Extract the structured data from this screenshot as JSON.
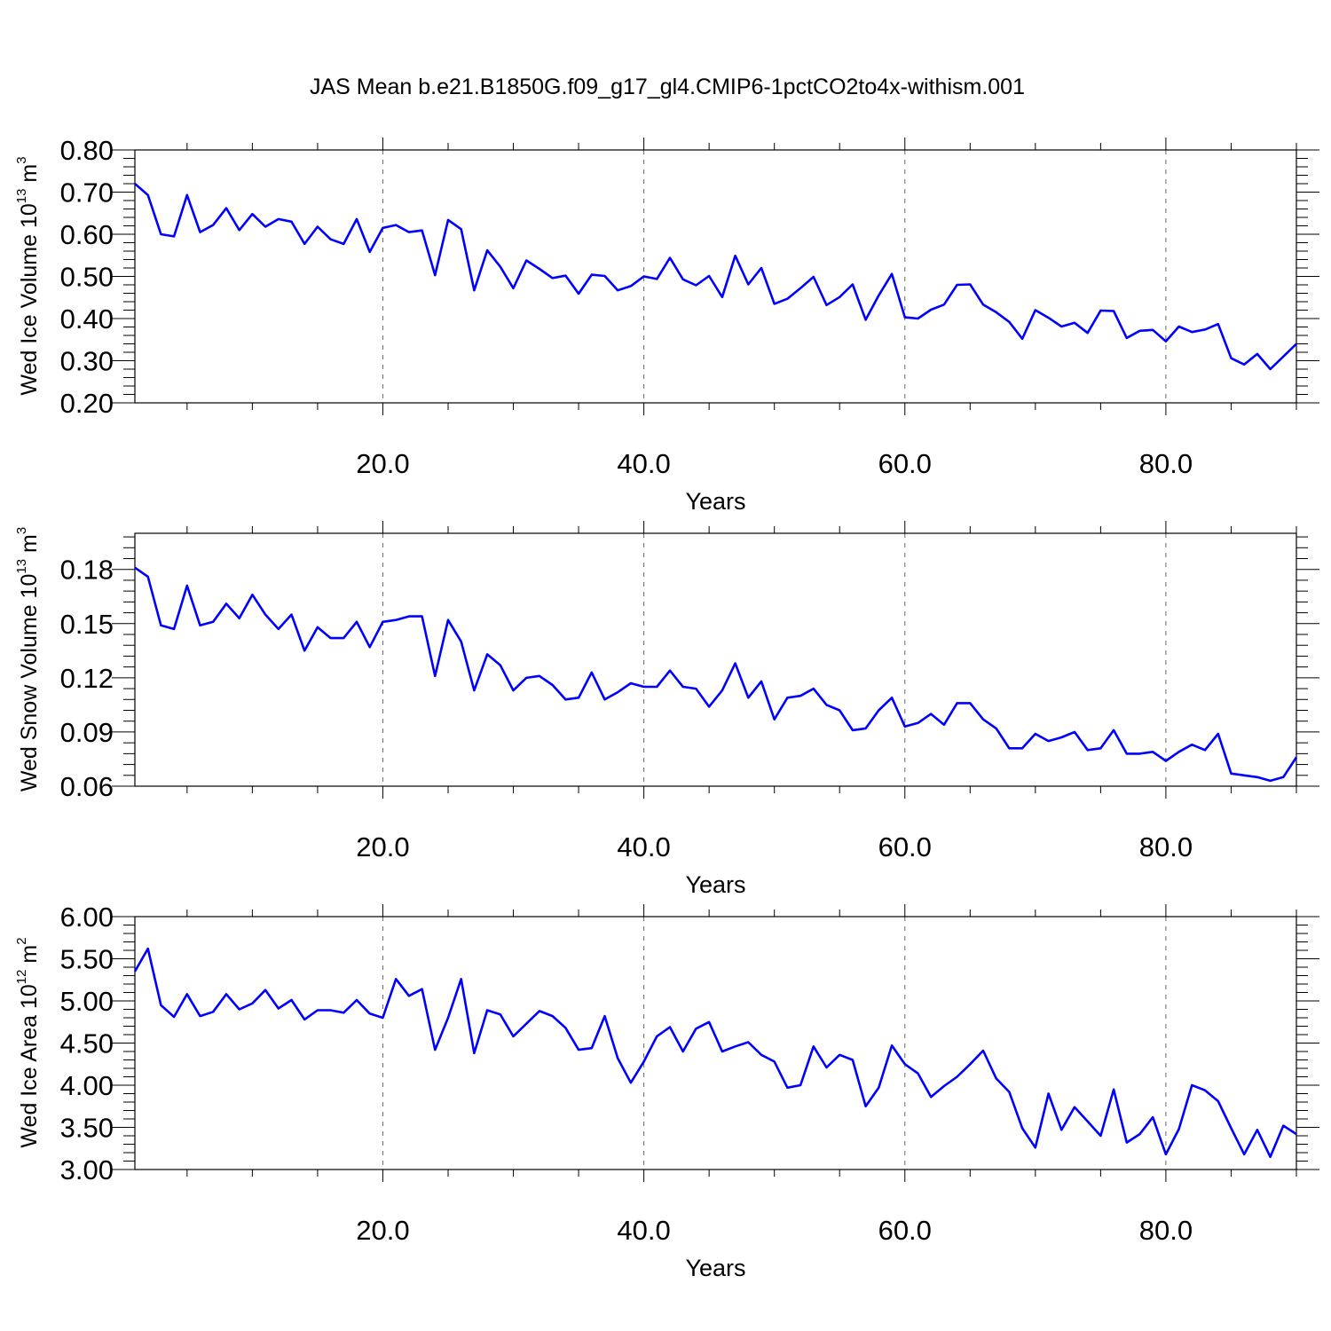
{
  "title": "JAS Mean b.e21.B1850G.f09_g17_gl4.CMIP6-1pctCO2to4x-withism.001",
  "colors": {
    "line": "#0000ff",
    "axis": "#000000",
    "grid": "#666666"
  },
  "chart_data": [
    {
      "type": "line",
      "name": "ice-volume",
      "xlabel": "Years",
      "ylabel": {
        "main": "Wed Ice Volume 10",
        "exp": "13",
        "unit": " m",
        "unitexp": "3"
      },
      "xlim": [
        1,
        90
      ],
      "ylim": [
        0.2,
        0.8
      ],
      "xticks": [
        20,
        40,
        60,
        80
      ],
      "xtick_labels": [
        "20.0",
        "40.0",
        "60.0",
        "80.0"
      ],
      "yticks": [
        0.2,
        0.3,
        0.4,
        0.5,
        0.6,
        0.7,
        0.8
      ],
      "ytick_labels": [
        "0.20",
        "0.30",
        "0.40",
        "0.50",
        "0.60",
        "0.70",
        "0.80"
      ],
      "grid": "vertical dashed at major x ticks",
      "values": [
        0.72,
        0.693,
        0.6,
        0.595,
        0.693,
        0.605,
        0.622,
        0.662,
        0.61,
        0.648,
        0.618,
        0.636,
        0.63,
        0.577,
        0.618,
        0.588,
        0.577,
        0.636,
        0.558,
        0.615,
        0.622,
        0.605,
        0.609,
        0.503,
        0.634,
        0.612,
        0.467,
        0.562,
        0.523,
        0.472,
        0.538,
        0.518,
        0.496,
        0.502,
        0.459,
        0.504,
        0.501,
        0.467,
        0.477,
        0.5,
        0.494,
        0.544,
        0.493,
        0.479,
        0.501,
        0.451,
        0.549,
        0.481,
        0.52,
        0.435,
        0.447,
        0.472,
        0.499,
        0.432,
        0.451,
        0.481,
        0.397,
        0.455,
        0.506,
        0.403,
        0.4,
        0.421,
        0.433,
        0.48,
        0.481,
        0.433,
        0.415,
        0.392,
        0.352,
        0.42,
        0.402,
        0.381,
        0.39,
        0.366,
        0.419,
        0.418,
        0.354,
        0.371,
        0.373,
        0.346,
        0.381,
        0.368,
        0.374,
        0.387,
        0.306,
        0.291,
        0.316,
        0.28,
        0.31,
        0.34
      ]
    },
    {
      "type": "line",
      "name": "snow-volume",
      "xlabel": "Years",
      "ylabel": {
        "main": "Wed Snow Volume 10",
        "exp": "13",
        "unit": " m",
        "unitexp": "3"
      },
      "xlim": [
        1,
        90
      ],
      "ylim": [
        0.06,
        0.2
      ],
      "xticks": [
        20,
        40,
        60,
        80
      ],
      "xtick_labels": [
        "20.0",
        "40.0",
        "60.0",
        "80.0"
      ],
      "yticks": [
        0.06,
        0.09,
        0.12,
        0.15,
        0.18
      ],
      "ytick_labels": [
        "0.06",
        "0.09",
        "0.12",
        "0.15",
        "0.18"
      ],
      "grid": "vertical dashed at major x ticks",
      "values": [
        0.181,
        0.176,
        0.149,
        0.147,
        0.171,
        0.149,
        0.151,
        0.161,
        0.153,
        0.166,
        0.155,
        0.147,
        0.155,
        0.135,
        0.148,
        0.142,
        0.142,
        0.151,
        0.137,
        0.151,
        0.152,
        0.154,
        0.154,
        0.121,
        0.152,
        0.14,
        0.113,
        0.133,
        0.127,
        0.113,
        0.12,
        0.121,
        0.116,
        0.108,
        0.109,
        0.123,
        0.108,
        0.112,
        0.117,
        0.115,
        0.115,
        0.124,
        0.115,
        0.114,
        0.104,
        0.113,
        0.128,
        0.109,
        0.118,
        0.097,
        0.109,
        0.11,
        0.114,
        0.105,
        0.102,
        0.091,
        0.092,
        0.102,
        0.109,
        0.093,
        0.095,
        0.1,
        0.094,
        0.106,
        0.106,
        0.097,
        0.092,
        0.081,
        0.081,
        0.089,
        0.085,
        0.087,
        0.09,
        0.08,
        0.081,
        0.091,
        0.078,
        0.078,
        0.079,
        0.074,
        0.079,
        0.083,
        0.08,
        0.089,
        0.067,
        0.066,
        0.065,
        0.063,
        0.065,
        0.076
      ]
    },
    {
      "type": "line",
      "name": "ice-area",
      "xlabel": "Years",
      "ylabel": {
        "main": "Wed Ice Area 10",
        "exp": "12",
        "unit": " m",
        "unitexp": "2"
      },
      "xlim": [
        1,
        90
      ],
      "ylim": [
        3.0,
        6.0
      ],
      "xticks": [
        20,
        40,
        60,
        80
      ],
      "xtick_labels": [
        "20.0",
        "40.0",
        "60.0",
        "80.0"
      ],
      "yticks": [
        3.0,
        3.5,
        4.0,
        4.5,
        5.0,
        5.5,
        6.0
      ],
      "ytick_labels": [
        "3.00",
        "3.50",
        "4.00",
        "4.50",
        "5.00",
        "5.50",
        "6.00"
      ],
      "grid": "vertical dashed at major x ticks",
      "values": [
        5.35,
        5.62,
        4.95,
        4.81,
        5.08,
        4.82,
        4.87,
        5.08,
        4.9,
        4.97,
        5.13,
        4.91,
        5.01,
        4.78,
        4.89,
        4.89,
        4.86,
        5.01,
        4.85,
        4.8,
        5.26,
        5.06,
        5.14,
        4.42,
        4.8,
        5.26,
        4.38,
        4.89,
        4.84,
        4.58,
        4.73,
        4.88,
        4.82,
        4.68,
        4.42,
        4.44,
        4.82,
        4.32,
        4.03,
        4.28,
        4.58,
        4.69,
        4.4,
        4.67,
        4.75,
        4.4,
        4.46,
        4.51,
        4.36,
        4.28,
        3.97,
        4.0,
        4.46,
        4.21,
        4.36,
        4.3,
        3.75,
        3.97,
        4.47,
        4.25,
        4.14,
        3.86,
        3.99,
        4.1,
        4.25,
        4.41,
        4.08,
        3.92,
        3.49,
        3.26,
        3.9,
        3.47,
        3.74,
        3.57,
        3.4,
        3.95,
        3.32,
        3.42,
        3.62,
        3.18,
        3.48,
        4.0,
        3.94,
        3.81,
        3.49,
        3.18,
        3.47,
        3.15,
        3.52,
        3.42
      ]
    }
  ]
}
